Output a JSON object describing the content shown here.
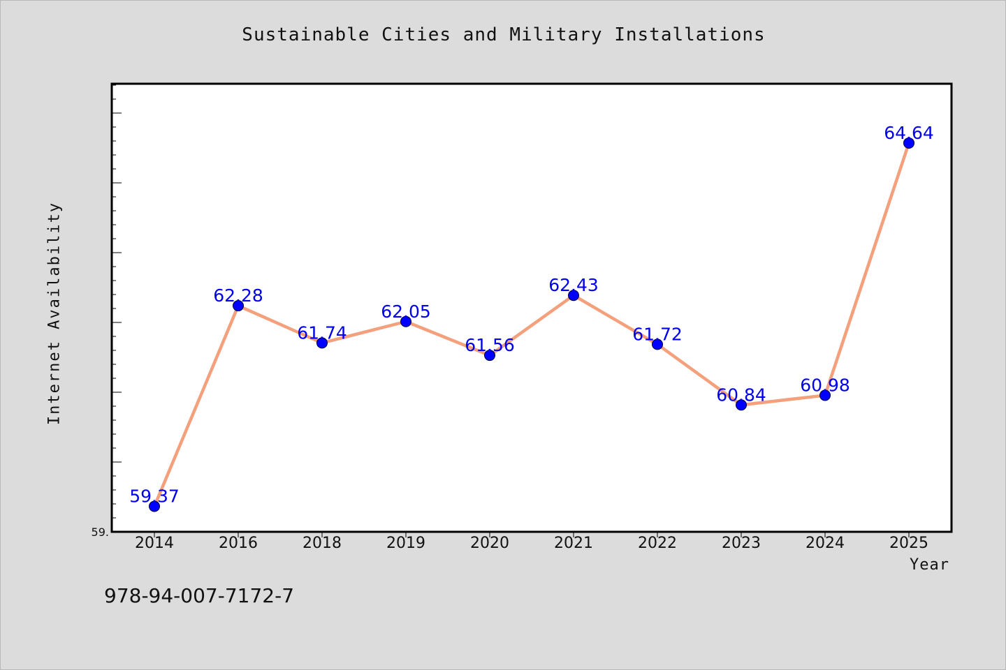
{
  "chart_data": {
    "type": "line",
    "title": "Sustainable Cities and Military Installations",
    "xlabel": "Year",
    "ylabel": "Internet Availability",
    "categories": [
      "2014",
      "2016",
      "2018",
      "2019",
      "2020",
      "2021",
      "2022",
      "2023",
      "2024",
      "2025"
    ],
    "series": [
      {
        "values": [
          59.37,
          62.28,
          61.74,
          62.05,
          61.56,
          62.43,
          61.72,
          60.84,
          60.98,
          64.64
        ],
        "data_labels": [
          "59.37",
          "62.28",
          "61.74",
          "62.05",
          "61.56",
          "62.43",
          "61.72",
          "60.84",
          "60.98",
          "64.64"
        ]
      }
    ],
    "ylim": [
      59.0,
      65.5
    ],
    "y_tick_labels": [
      "59."
    ],
    "grid": false,
    "legend": "none",
    "colors": {
      "line": "#f4a07c",
      "marker": "#0000ff",
      "marker_edge": "#000033",
      "data_label": "#0000ee",
      "plot_background": "#ffffff",
      "figure_background": "#dcdcdc"
    }
  },
  "footnote": "978-94-007-7172-7"
}
